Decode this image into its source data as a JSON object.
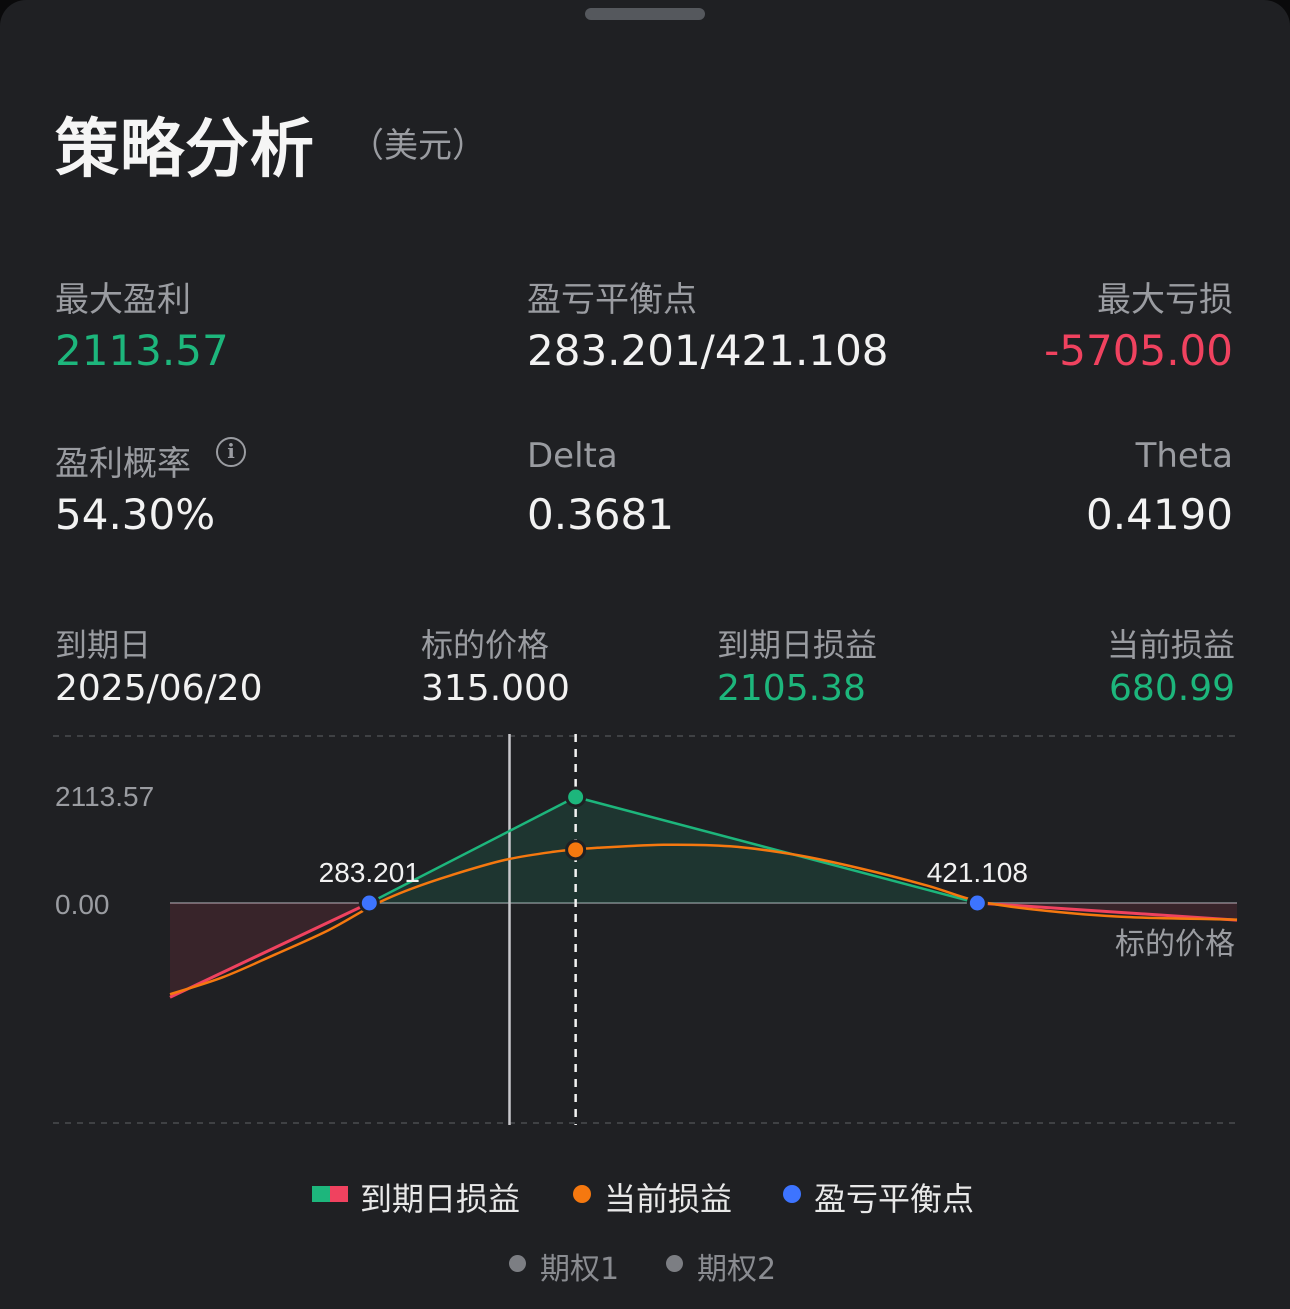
{
  "header": {
    "title": "策略分析",
    "unit": "（美元）"
  },
  "stats": {
    "max_profit": {
      "label": "最大盈利",
      "value": "2113.57"
    },
    "breakeven": {
      "label": "盈亏平衡点",
      "value": "283.201/421.108"
    },
    "max_loss": {
      "label": "最大亏损",
      "value": "-5705.00"
    },
    "prob_profit": {
      "label": "盈利概率",
      "value": "54.30%",
      "icon": "info-icon"
    },
    "delta": {
      "label": "Delta",
      "value": "0.3681"
    },
    "theta": {
      "label": "Theta",
      "value": "0.4190"
    }
  },
  "details": {
    "expiry": {
      "label": "到期日",
      "value": "2025/06/20"
    },
    "underlying": {
      "label": "标的价格",
      "value": "315.000"
    },
    "expiry_pl": {
      "label": "到期日损益",
      "value": "2105.38"
    },
    "current_pl": {
      "label": "当前损益",
      "value": "680.99"
    }
  },
  "colors": {
    "profit": "#1db67c",
    "loss": "#f0425f",
    "current": "#f5780f",
    "breakeven": "#3d74ff",
    "text_muted": "#9a9ca1"
  },
  "chart_data": {
    "type": "line",
    "title": "",
    "xlabel": "标的价格",
    "ylabel": "",
    "y_ticks": [
      "2113.57",
      "0.00"
    ],
    "xlim": [
      238,
      480
    ],
    "ylim": [
      -1850,
      2450
    ],
    "max_profit": 2113.57,
    "breakevens": [
      {
        "x": 283.201,
        "label": "283.201"
      },
      {
        "x": 421.108,
        "label": "421.108"
      }
    ],
    "underlying_price": 315.0,
    "cursor_price": 330,
    "series": [
      {
        "name": "到期日损益",
        "points": [
          [
            238,
            -1880
          ],
          [
            283.201,
            0
          ],
          [
            330,
            2113.57
          ],
          [
            421.108,
            0
          ],
          [
            480,
            -340
          ]
        ]
      },
      {
        "name": "当前损益",
        "points": [
          [
            238,
            -1820
          ],
          [
            250,
            -1480
          ],
          [
            262,
            -1020
          ],
          [
            274,
            -540
          ],
          [
            284,
            -50
          ],
          [
            292,
            260
          ],
          [
            302,
            560
          ],
          [
            314,
            860
          ],
          [
            325,
            1020
          ],
          [
            335,
            1100
          ],
          [
            350,
            1160
          ],
          [
            365,
            1130
          ],
          [
            380,
            960
          ],
          [
            395,
            680
          ],
          [
            410,
            340
          ],
          [
            421.108,
            40
          ],
          [
            435,
            -140
          ],
          [
            455,
            -280
          ],
          [
            480,
            -330
          ]
        ]
      }
    ]
  },
  "legend": {
    "expiry_pl": "到期日损益",
    "current_pl": "当前损益",
    "breakeven": "盈亏平衡点",
    "option1": "期权1",
    "option2": "期权2"
  }
}
